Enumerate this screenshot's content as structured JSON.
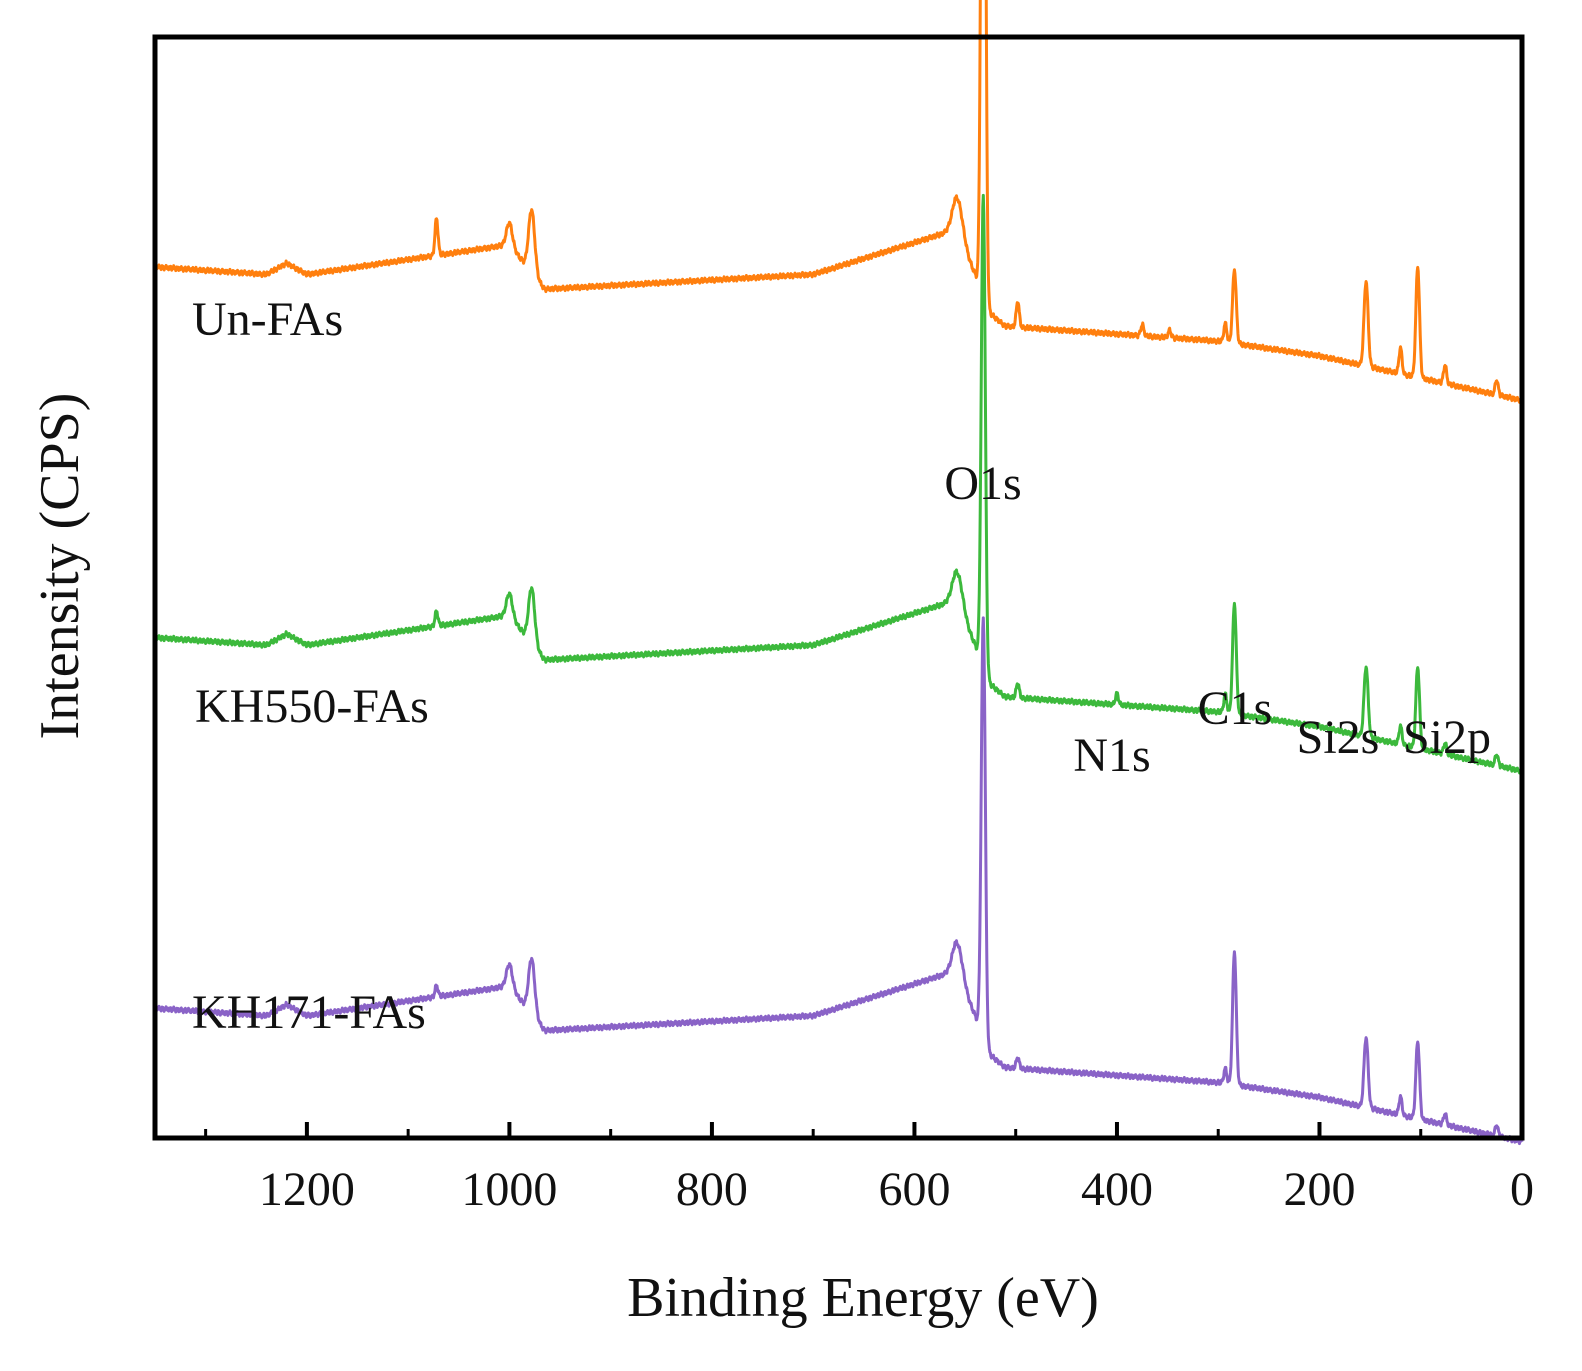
{
  "chart_data": {
    "type": "line",
    "title": "",
    "xlabel": "Binding Energy (eV)",
    "ylabel": "Intensity (CPS)",
    "xlim": [
      1350,
      0
    ],
    "x_reversed": true,
    "x_ticks": [
      1200,
      1000,
      800,
      600,
      400,
      200,
      0
    ],
    "x_minor_ticks": [
      1300,
      1100,
      900,
      700,
      500,
      300,
      100
    ],
    "yaxis_ticks_shown": false,
    "grid": false,
    "colors": {
      "Un-FAs": "#FF7F0E",
      "KH550-FAs": "#3CB93C",
      "KH171-FAs": "#8A63C7"
    },
    "series": [
      {
        "name": "Un-FAs",
        "offset": 2.0,
        "baseline": [
          [
            1350,
            0.42
          ],
          [
            1240,
            0.4
          ],
          [
            1220,
            0.43
          ],
          [
            1200,
            0.4
          ],
          [
            1000,
            0.48
          ],
          [
            965,
            0.36
          ],
          [
            700,
            0.4
          ],
          [
            560,
            0.52
          ],
          [
            540,
            0.4
          ],
          [
            528,
            0.3
          ],
          [
            510,
            0.26
          ],
          [
            300,
            0.22
          ],
          [
            200,
            0.18
          ],
          [
            0,
            0.06
          ]
        ],
        "peaks": [
          {
            "x": 532,
            "h": 2.4,
            "w": 2.0
          },
          {
            "x": 1072,
            "h": 0.1,
            "w": 1.5
          },
          {
            "x": 1000,
            "h": 0.06,
            "w": 3
          },
          {
            "x": 978,
            "h": 0.17,
            "w": 3
          },
          {
            "x": 557,
            "h": 0.1,
            "w": 5
          },
          {
            "x": 498,
            "h": 0.07,
            "w": 1.5
          },
          {
            "x": 375,
            "h": 0.03,
            "w": 1.5
          },
          {
            "x": 348,
            "h": 0.02,
            "w": 1.5
          },
          {
            "x": 293,
            "h": 0.05,
            "w": 1.5
          },
          {
            "x": 284,
            "h": 0.2,
            "w": 1.8
          },
          {
            "x": 154,
            "h": 0.23,
            "w": 2.0
          },
          {
            "x": 120,
            "h": 0.07,
            "w": 1.5
          },
          {
            "x": 103,
            "h": 0.3,
            "w": 1.8
          },
          {
            "x": 76,
            "h": 0.05,
            "w": 1.5
          },
          {
            "x": 25,
            "h": 0.04,
            "w": 1.5
          }
        ]
      },
      {
        "name": "KH550-FAs",
        "offset": 1.0,
        "baseline": [
          [
            1350,
            0.42
          ],
          [
            1240,
            0.4
          ],
          [
            1220,
            0.43
          ],
          [
            1200,
            0.4
          ],
          [
            1000,
            0.48
          ],
          [
            965,
            0.36
          ],
          [
            700,
            0.4
          ],
          [
            560,
            0.52
          ],
          [
            540,
            0.4
          ],
          [
            528,
            0.3
          ],
          [
            510,
            0.26
          ],
          [
            300,
            0.22
          ],
          [
            200,
            0.18
          ],
          [
            0,
            0.06
          ]
        ],
        "peaks": [
          {
            "x": 532,
            "h": 1.28,
            "w": 2.0
          },
          {
            "x": 1072,
            "h": 0.04,
            "w": 1.5
          },
          {
            "x": 1000,
            "h": 0.06,
            "w": 3
          },
          {
            "x": 978,
            "h": 0.15,
            "w": 3
          },
          {
            "x": 557,
            "h": 0.09,
            "w": 5
          },
          {
            "x": 498,
            "h": 0.04,
            "w": 1.5
          },
          {
            "x": 400,
            "h": 0.03,
            "w": 1.5
          },
          {
            "x": 293,
            "h": 0.05,
            "w": 1.5
          },
          {
            "x": 284,
            "h": 0.3,
            "w": 1.8
          },
          {
            "x": 154,
            "h": 0.19,
            "w": 2.0
          },
          {
            "x": 120,
            "h": 0.05,
            "w": 1.5
          },
          {
            "x": 103,
            "h": 0.22,
            "w": 1.8
          },
          {
            "x": 76,
            "h": 0.03,
            "w": 1.5
          },
          {
            "x": 25,
            "h": 0.03,
            "w": 1.5
          }
        ]
      },
      {
        "name": "KH171-FAs",
        "offset": 0.0,
        "baseline": [
          [
            1350,
            0.42
          ],
          [
            1240,
            0.4
          ],
          [
            1220,
            0.43
          ],
          [
            1200,
            0.4
          ],
          [
            1000,
            0.48
          ],
          [
            965,
            0.36
          ],
          [
            700,
            0.4
          ],
          [
            560,
            0.52
          ],
          [
            540,
            0.4
          ],
          [
            528,
            0.3
          ],
          [
            510,
            0.26
          ],
          [
            300,
            0.22
          ],
          [
            200,
            0.18
          ],
          [
            0,
            0.06
          ]
        ],
        "peaks": [
          {
            "x": 532,
            "h": 1.14,
            "w": 2.0
          },
          {
            "x": 1072,
            "h": 0.03,
            "w": 1.5
          },
          {
            "x": 1000,
            "h": 0.06,
            "w": 3
          },
          {
            "x": 978,
            "h": 0.15,
            "w": 3
          },
          {
            "x": 557,
            "h": 0.09,
            "w": 5
          },
          {
            "x": 498,
            "h": 0.03,
            "w": 1.5
          },
          {
            "x": 293,
            "h": 0.04,
            "w": 1.5
          },
          {
            "x": 284,
            "h": 0.36,
            "w": 1.8
          },
          {
            "x": 154,
            "h": 0.19,
            "w": 2.0
          },
          {
            "x": 120,
            "h": 0.05,
            "w": 1.5
          },
          {
            "x": 103,
            "h": 0.21,
            "w": 1.8
          },
          {
            "x": 76,
            "h": 0.03,
            "w": 1.5
          },
          {
            "x": 25,
            "h": 0.03,
            "w": 1.5
          }
        ]
      }
    ],
    "series_labels": [
      "Un-FAs",
      "KH550-FAs",
      "KH171-FAs"
    ],
    "annotations": [
      {
        "text": "O1s",
        "x": 532
      },
      {
        "text": "N1s",
        "x": 400
      },
      {
        "text": "C1s",
        "x": 284
      },
      {
        "text": "Si2s",
        "x": 154
      },
      {
        "text": "Si2p",
        "x": 103
      }
    ]
  }
}
